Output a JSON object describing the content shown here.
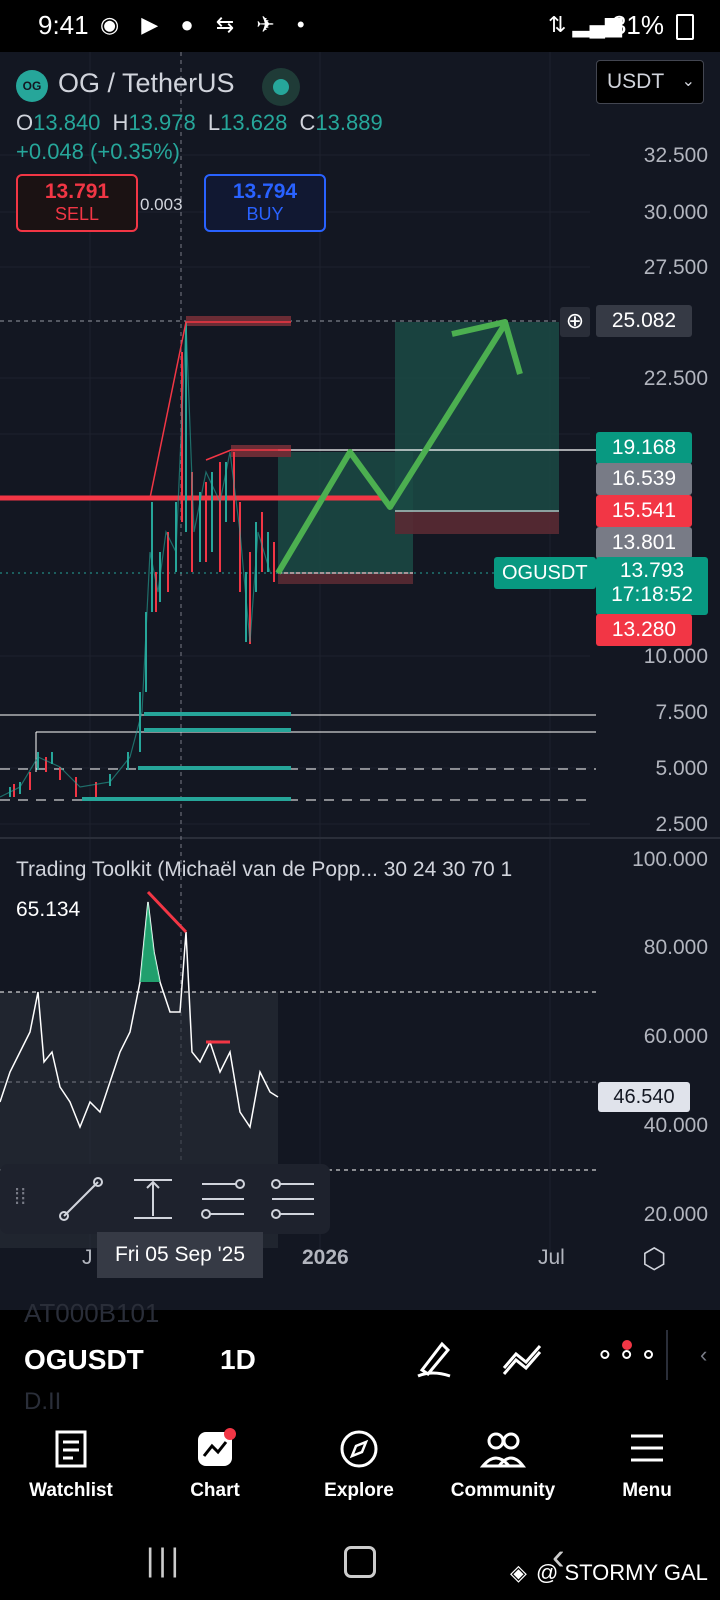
{
  "status_bar": {
    "time": "9:41",
    "battery": "31%"
  },
  "header": {
    "pair": "OG / TetherUS",
    "currency_select": "USDT",
    "ohlc": {
      "o_label": "O",
      "o": "13.840",
      "h_label": "H",
      "h": "13.978",
      "l_label": "L",
      "l": "13.628",
      "c_label": "C",
      "c": "13.889"
    },
    "change": "+0.048 (+0.35%)"
  },
  "trade": {
    "sell_price": "13.791",
    "sell_label": "SELL",
    "spread": "0.003",
    "buy_price": "13.794",
    "buy_label": "BUY"
  },
  "price_axis": [
    "32.500",
    "30.000",
    "27.500",
    "22.500",
    "10.000",
    "7.500",
    "5.000",
    "2.500"
  ],
  "price_tags": {
    "crosshair": "25.082",
    "t1": "19.168",
    "t2": "16.539",
    "t3": "15.541",
    "t4": "13.801",
    "symbol_label": "OGUSDT",
    "current": "13.793",
    "countdown": "17:18:52",
    "t5": "13.280"
  },
  "indicator": {
    "title": "Trading Toolkit (Michaël van de Popp... 30 24 30 70 1",
    "value": "65.134",
    "axis": [
      "100.000",
      "80.000",
      "60.000",
      "40.000",
      "20.000"
    ],
    "current_tag": "46.540"
  },
  "time_axis": {
    "j": "J",
    "crosshair_date": "Fri 05 Sep '25",
    "year": "2026",
    "jul": "Jul"
  },
  "toolbar": {
    "symbol": "OGUSDT",
    "interval": "1D",
    "ghost_top": "AT000B101",
    "ghost_bottom": "D.II"
  },
  "nav": {
    "watchlist": "Watchlist",
    "chart": "Chart",
    "explore": "Explore",
    "community": "Community",
    "menu": "Menu"
  },
  "watermark": "@ STORMY GAL",
  "colors": {
    "bg": "#131722",
    "green": "#26a69a",
    "red": "#f23645",
    "arrow": "#4caf50",
    "blue": "#2962ff"
  }
}
